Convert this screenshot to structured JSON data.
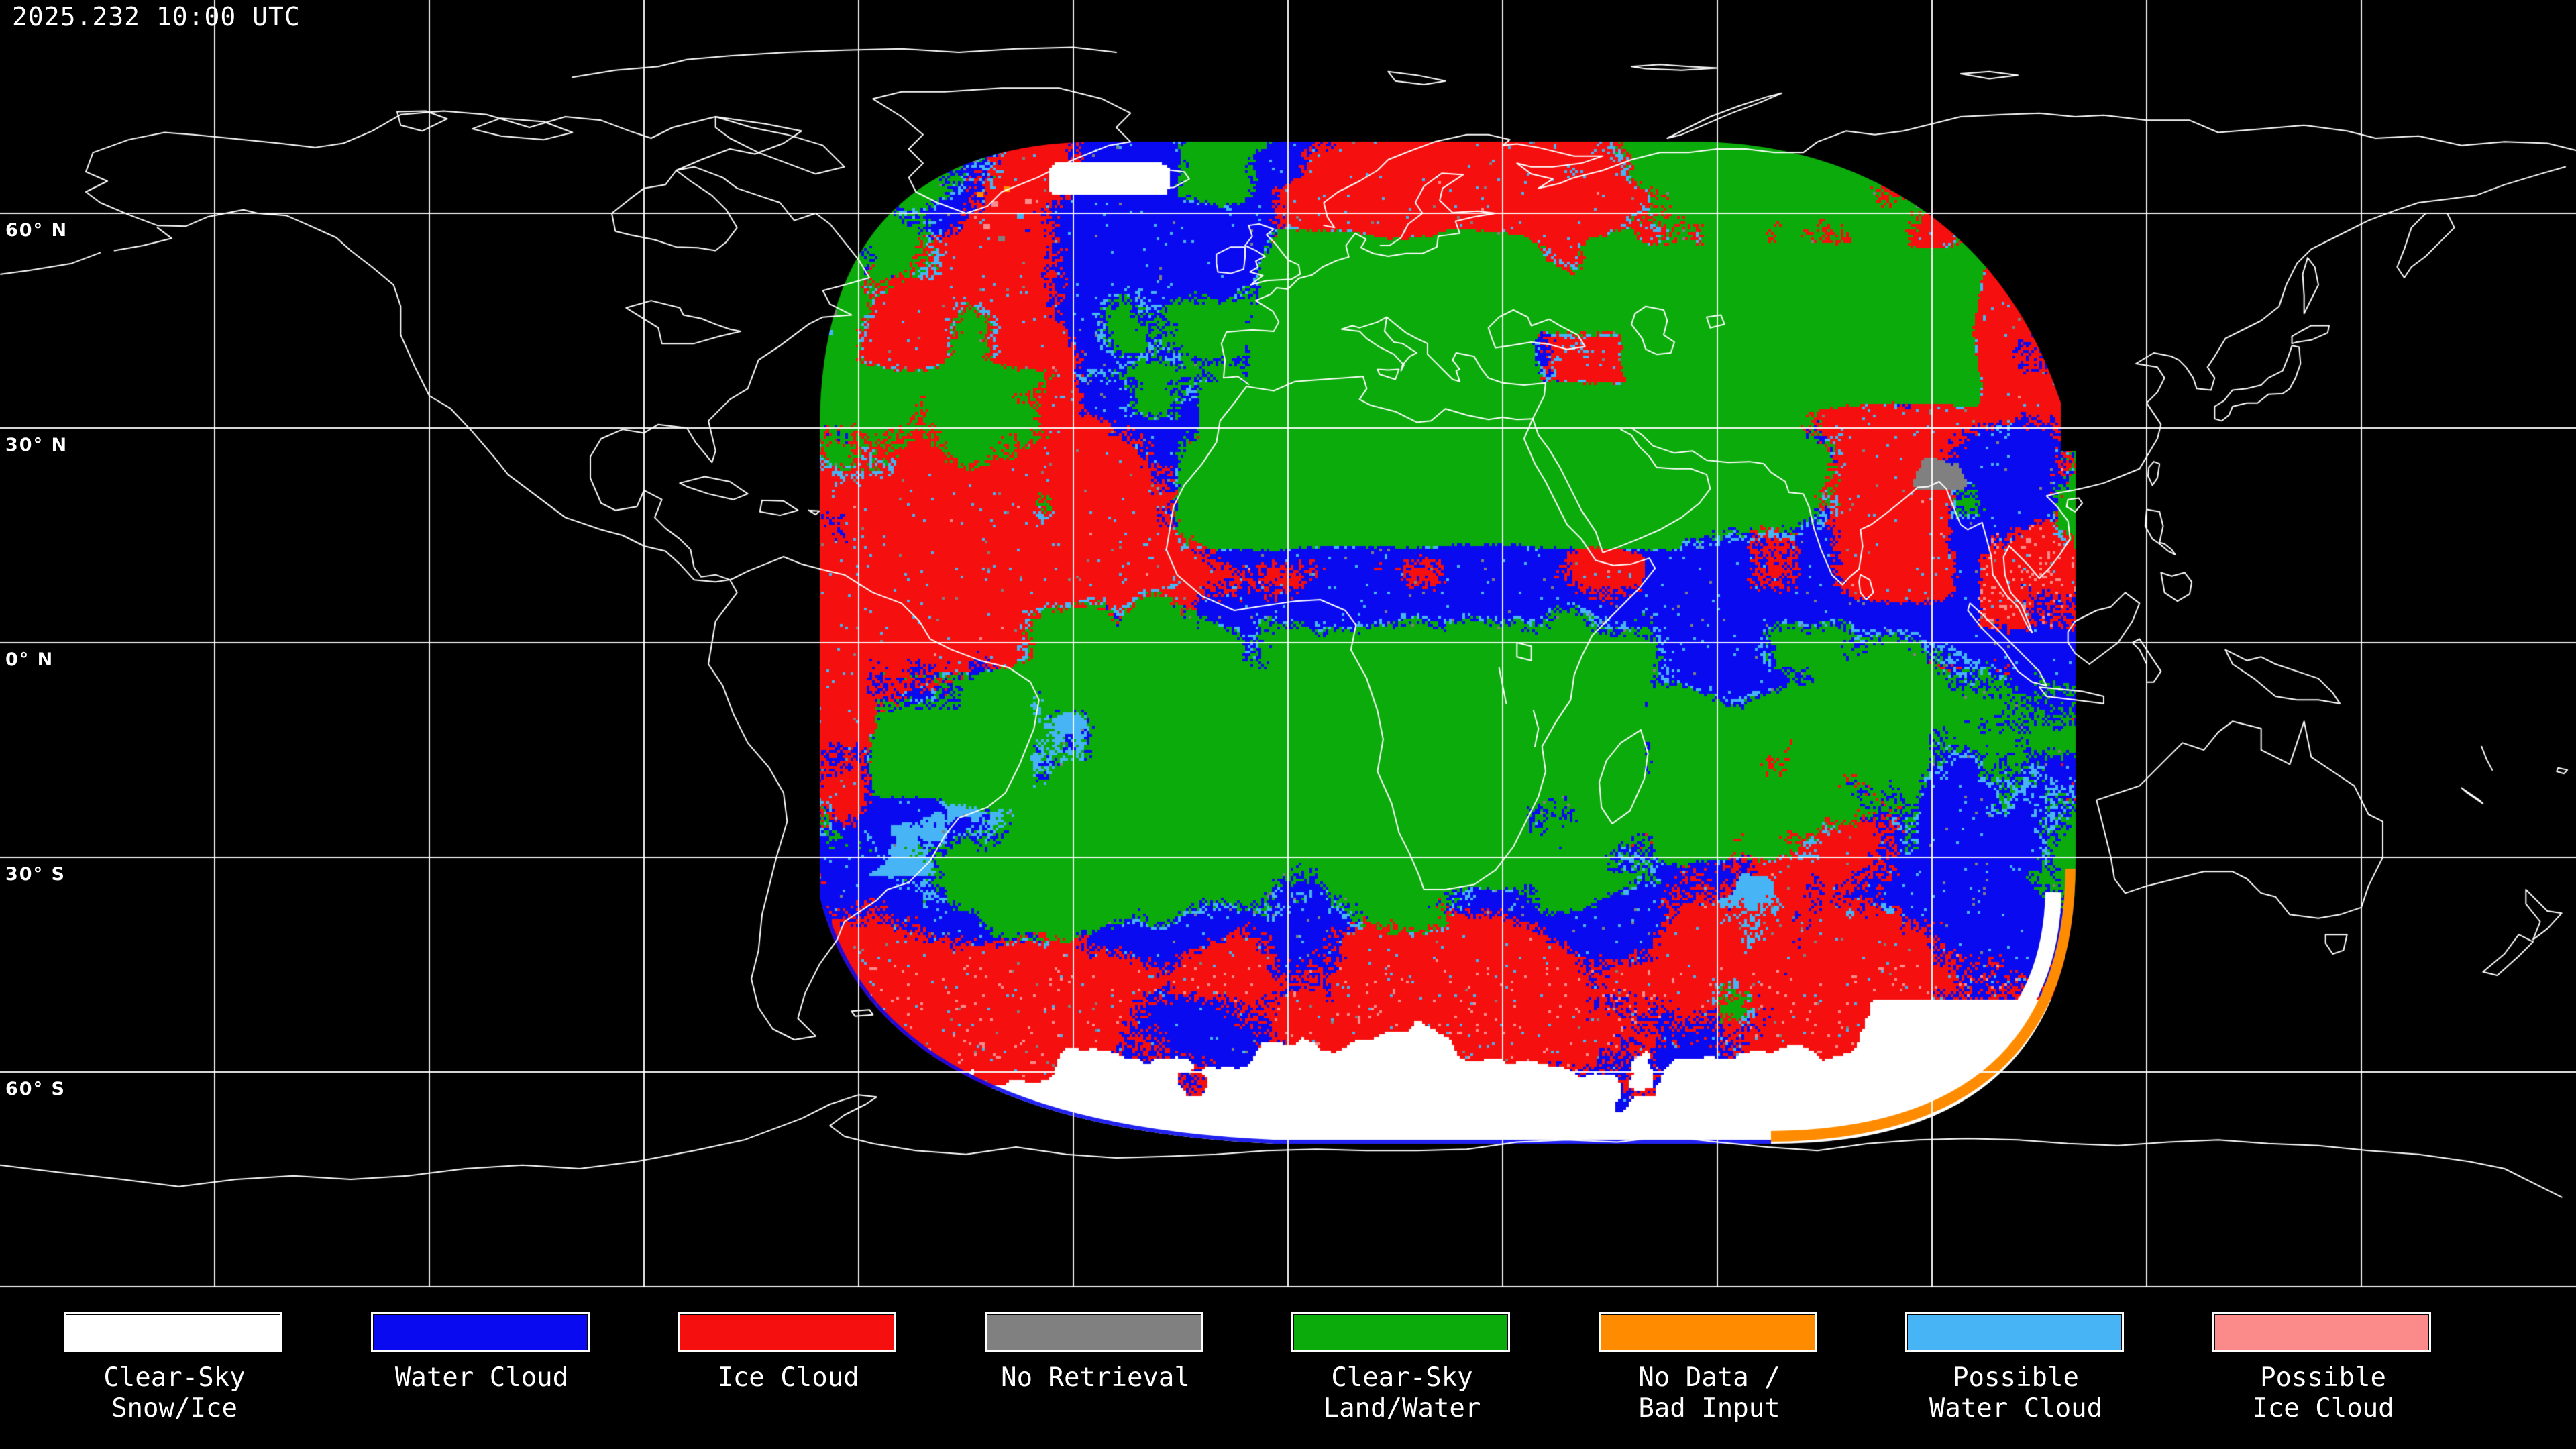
{
  "header": {
    "timestamp": "2025.232 10:00 UTC"
  },
  "map": {
    "graticule_interval_deg": 30,
    "latitude_labels": [
      {
        "id": "60n",
        "label": "60° N",
        "lat": 60
      },
      {
        "id": "30n",
        "label": "30° N",
        "lat": 30
      },
      {
        "id": "0n",
        "label": "0° N",
        "lat": 0
      },
      {
        "id": "30s",
        "label": "30° S",
        "lat": -30
      },
      {
        "id": "60s",
        "label": "60° S",
        "lat": -60
      }
    ],
    "colors": {
      "clear_sky_snow_ice": "#FFFFFF",
      "water_cloud": "#0A0AF0",
      "ice_cloud": "#F50F0F",
      "no_retrieval": "#808080",
      "clear_sky_land_water": "#0BAB0B",
      "no_data_bad_input": "#FF8C00",
      "possible_water_cloud": "#46B4F5",
      "possible_ice_cloud": "#FB8B8B",
      "background": "#000000",
      "coastline": "#FFFFFF",
      "graticule": "#FFFFFF",
      "text": "#FFFFFF"
    }
  },
  "legend": {
    "items": [
      {
        "id": "clear-sky-snow-ice",
        "color_key": "clear_sky_snow_ice",
        "lines": [
          "Clear-Sky",
          "Snow/Ice"
        ]
      },
      {
        "id": "water-cloud",
        "color_key": "water_cloud",
        "lines": [
          "Water Cloud"
        ]
      },
      {
        "id": "ice-cloud",
        "color_key": "ice_cloud",
        "lines": [
          "Ice Cloud"
        ]
      },
      {
        "id": "no-retrieval",
        "color_key": "no_retrieval",
        "lines": [
          "No Retrieval"
        ]
      },
      {
        "id": "clear-sky-land-water",
        "color_key": "clear_sky_land_water",
        "lines": [
          "Clear-Sky",
          "Land/Water"
        ]
      },
      {
        "id": "no-data-bad-input",
        "color_key": "no_data_bad_input",
        "lines": [
          "No Data /",
          "Bad Input"
        ]
      },
      {
        "id": "possible-water-cloud",
        "color_key": "possible_water_cloud",
        "lines": [
          "Possible",
          "Water Cloud"
        ]
      },
      {
        "id": "possible-ice-cloud",
        "color_key": "possible_ice_cloud",
        "lines": [
          "Possible",
          "Ice Cloud"
        ]
      }
    ]
  }
}
